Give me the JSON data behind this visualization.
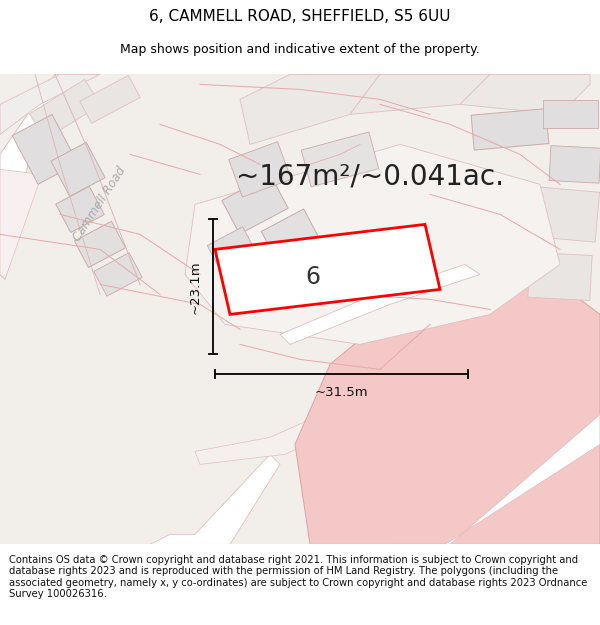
{
  "title": "6, CAMMELL ROAD, SHEFFIELD, S5 6UU",
  "subtitle": "Map shows position and indicative extent of the property.",
  "area_text": "~167m²/~0.041ac.",
  "dim_width": "~31.5m",
  "dim_height": "~23.1m",
  "house_number": "6",
  "footer_text": "Contains OS data © Crown copyright and database right 2021. This information is subject to Crown copyright and database rights 2023 and is reproduced with the permission of HM Land Registry. The polygons (including the associated geometry, namely x, y co-ordinates) are subject to Crown copyright and database rights 2023 Ordnance Survey 100026316.",
  "bg_color": "#f2eeea",
  "road_color": "#ffffff",
  "plot_fill": "#ffffff",
  "plot_stroke": "#ff0000",
  "parcel_stroke": "#f0a0a0",
  "building_fill": "#e0dede",
  "pink_fill": "#f5c8c8",
  "title_fontsize": 11,
  "subtitle_fontsize": 9,
  "area_fontsize": 20,
  "footer_fontsize": 7.2,
  "road_label_color": "#aaaaaa"
}
